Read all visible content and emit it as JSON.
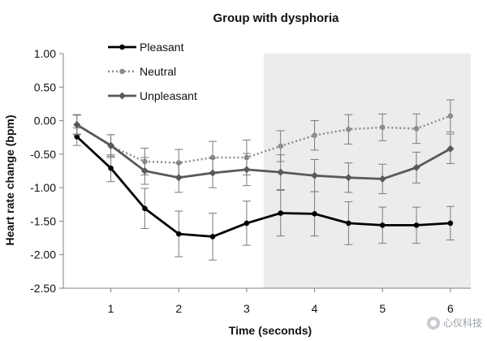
{
  "chart_data": {
    "type": "line",
    "title": "Group with dysphoria",
    "xlabel": "Time (seconds)",
    "ylabel": "Heart rate change (bpm)",
    "x": [
      0.5,
      1,
      1.5,
      2,
      2.5,
      3,
      3.5,
      4,
      4.5,
      5,
      5.5,
      6
    ],
    "xlim": [
      0.3,
      6.3
    ],
    "ylim": [
      -2.5,
      1.0
    ],
    "xticks": [
      "1",
      "2",
      "3",
      "4",
      "5",
      "6"
    ],
    "xtick_values": [
      1,
      2,
      3,
      4,
      5,
      6
    ],
    "yticks": [
      "1.00",
      "0.50",
      "0.00",
      "-0.50",
      "-1.00",
      "-1.50",
      "-2.00",
      "-2.50"
    ],
    "ytick_values": [
      1.0,
      0.5,
      0.0,
      -0.5,
      -1.0,
      -1.5,
      -2.0,
      -2.5
    ],
    "shaded_region": {
      "x_start": 3.25,
      "x_end": 6.3,
      "color": "#ececec"
    },
    "legend_position": "top-left",
    "grid": false,
    "series": [
      {
        "name": "Pleasant",
        "color": "#000000",
        "style": "solid",
        "values": [
          -0.24,
          -0.71,
          -1.31,
          -1.69,
          -1.73,
          -1.53,
          -1.38,
          -1.39,
          -1.53,
          -1.56,
          -1.56,
          -1.53
        ],
        "errors": [
          0.13,
          0.2,
          0.3,
          0.34,
          0.35,
          0.33,
          0.34,
          0.33,
          0.32,
          0.27,
          0.27,
          0.25
        ]
      },
      {
        "name": "Neutral",
        "color": "#8c8c8c",
        "style": "dotted",
        "values": [
          -0.06,
          -0.38,
          -0.61,
          -0.63,
          -0.55,
          -0.55,
          -0.38,
          -0.22,
          -0.13,
          -0.1,
          -0.12,
          0.07
        ],
        "errors": [
          0.15,
          0.17,
          0.2,
          0.2,
          0.24,
          0.26,
          0.23,
          0.22,
          0.22,
          0.2,
          0.22,
          0.24
        ]
      },
      {
        "name": "Unpleasant",
        "color": "#595959",
        "style": "solid",
        "values": [
          -0.06,
          -0.37,
          -0.75,
          -0.85,
          -0.78,
          -0.73,
          -0.77,
          -0.82,
          -0.85,
          -0.87,
          -0.7,
          -0.42
        ],
        "errors": [
          0.14,
          0.16,
          0.2,
          0.22,
          0.22,
          0.24,
          0.26,
          0.24,
          0.22,
          0.22,
          0.23,
          0.22
        ]
      }
    ]
  },
  "watermark": {
    "text": "心仪科技",
    "icon": "watermark-logo-icon"
  }
}
